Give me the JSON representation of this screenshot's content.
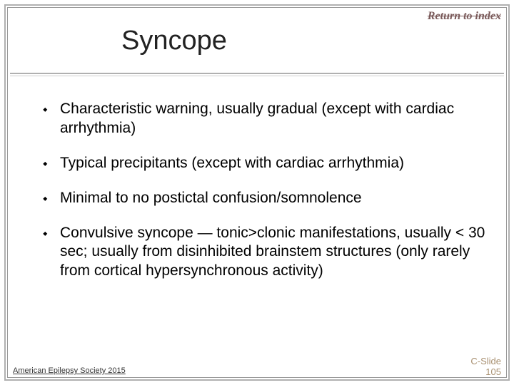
{
  "return_link": "Return to index",
  "title": "Syncope",
  "bullets": [
    "Characteristic warning, usually gradual (except with cardiac arrhythmia)",
    "Typical precipitants (except with cardiac arrhythmia)",
    "Minimal to no postictal confusion/somnolence",
    "Convulsive syncope — tonic>clonic manifestations, usually < 30 sec; usually from disinhibited brainstem structures (only rarely from cortical hypersynchronous activity)"
  ],
  "footer_left": "American Epilepsy Society 2015",
  "footer_right_line1": "C-Slide",
  "footer_right_line2": "105",
  "colors": {
    "frame_border": "#b0b0b0",
    "inner_border": "#999999",
    "text": "#000000",
    "return_link": "#7a5a5a",
    "footer_right": "#a89070",
    "background": "#ffffff"
  },
  "fonts": {
    "title_size": 38,
    "body_size": 21,
    "footer_size": 11
  }
}
